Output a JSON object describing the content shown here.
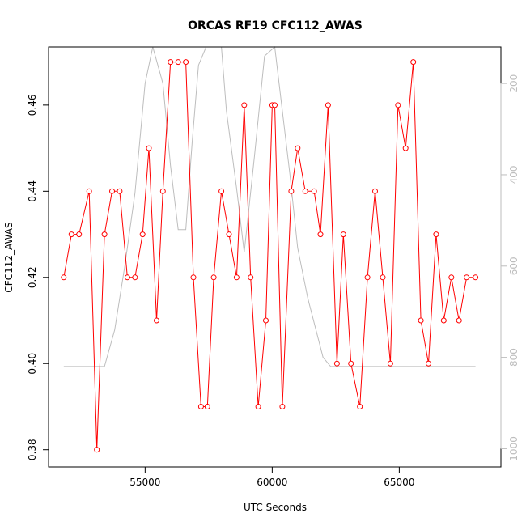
{
  "chart_data": {
    "type": "line",
    "title": "ORCAS RF19 CFC112_AWAS",
    "xlabel": "UTC Seconds",
    "ylabel": "CFC112_AWAS",
    "xlim": [
      51200,
      69000
    ],
    "ylim": [
      0.376,
      0.4735
    ],
    "x_ticks": [
      55000,
      60000,
      65000
    ],
    "x_tick_labels": [
      "55000",
      "60000",
      "65000"
    ],
    "y_ticks": [
      0.38,
      0.4,
      0.42,
      0.44,
      0.46
    ],
    "y_tick_labels": [
      "0.38",
      "0.40",
      "0.42",
      "0.44",
      "0.46"
    ],
    "y2_axis": {
      "reversed": true,
      "lim": [
        120,
        1040
      ],
      "ticks": [
        200,
        400,
        600,
        800,
        1000
      ],
      "tick_labels": [
        "200",
        "400",
        "600",
        "800",
        "1000"
      ],
      "color": "#bdbdbd"
    },
    "grid": false,
    "legend": "none",
    "series": [
      {
        "color": "#ff0000",
        "marker": "open-circle",
        "x": [
          51800,
          52100,
          52400,
          52800,
          53100,
          53400,
          53700,
          54000,
          54300,
          54600,
          54900,
          55150,
          55450,
          55700,
          56000,
          56300,
          56600,
          56900,
          57200,
          57450,
          57700,
          58000,
          58300,
          58600,
          58900,
          59150,
          59450,
          59750,
          60000,
          60100,
          60400,
          60750,
          61000,
          61300,
          61650,
          61900,
          62200,
          62550,
          62800,
          63100,
          63450,
          63750,
          64050,
          64350,
          64650,
          64950,
          65250,
          65550,
          65850,
          66150,
          66450,
          66750,
          67050,
          67350,
          67650,
          68000
        ],
        "values": [
          0.42,
          0.43,
          0.43,
          0.44,
          0.38,
          0.43,
          0.44,
          0.44,
          0.42,
          0.42,
          0.43,
          0.45,
          0.41,
          0.44,
          0.47,
          0.47,
          0.47,
          0.42,
          0.39,
          0.39,
          0.42,
          0.44,
          0.43,
          0.42,
          0.46,
          0.42,
          0.39,
          0.41,
          0.46,
          0.46,
          0.39,
          0.44,
          0.45,
          0.44,
          0.44,
          0.43,
          0.46,
          0.4,
          0.43,
          0.4,
          0.39,
          0.42,
          0.44,
          0.42,
          0.4,
          0.46,
          0.45,
          0.47,
          0.41,
          0.4,
          0.43,
          0.41,
          0.42,
          0.41,
          0.42,
          0.42
        ]
      },
      {
        "color": "#bdbdbd",
        "axis": "right",
        "x": [
          51800,
          53400,
          53800,
          54200,
          54600,
          55000,
          55300,
          55700,
          56000,
          56300,
          56600,
          56850,
          57100,
          57400,
          58000,
          58200,
          58600,
          58900,
          59300,
          59700,
          60100,
          60700,
          61000,
          61400,
          62000,
          62300,
          63000,
          68000
        ],
        "values": [
          820,
          820,
          740,
          600,
          440,
          200,
          40,
          200,
          380,
          520,
          520,
          330,
          160,
          20,
          20,
          260,
          430,
          570,
          360,
          140,
          40,
          400,
          560,
          670,
          800,
          820,
          820,
          820
        ]
      }
    ]
  }
}
